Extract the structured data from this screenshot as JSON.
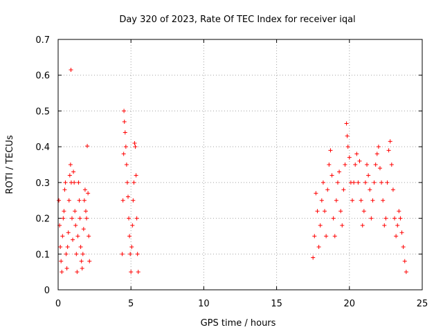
{
  "chart_data": {
    "type": "scatter",
    "title": "Day 320 of 2023, Rate Of TEC Index for receiver iqal",
    "xlabel": "GPS time / hours",
    "ylabel": "ROTI / TECUs",
    "xlim": [
      0,
      25
    ],
    "ylim": [
      0,
      0.7
    ],
    "xticks": [
      "0",
      "5",
      "10",
      "15",
      "20",
      "25"
    ],
    "yticks": [
      "0",
      "0.1",
      "0.2",
      "0.3",
      "0.4",
      "0.5",
      "0.6",
      "0.7"
    ],
    "grid": true,
    "marker": "+",
    "color": "#ff0000",
    "series": [
      {
        "points": [
          [
            0.05,
            0.25
          ],
          [
            0.1,
            0.18
          ],
          [
            0.15,
            0.12
          ],
          [
            0.2,
            0.08
          ],
          [
            0.25,
            0.05
          ],
          [
            0.3,
            0.15
          ],
          [
            0.35,
            0.2
          ],
          [
            0.4,
            0.22
          ],
          [
            0.45,
            0.28
          ],
          [
            0.5,
            0.3
          ],
          [
            0.55,
            0.1
          ],
          [
            0.6,
            0.06
          ],
          [
            0.65,
            0.12
          ],
          [
            0.7,
            0.16
          ],
          [
            0.75,
            0.25
          ],
          [
            0.8,
            0.32
          ],
          [
            0.85,
            0.35
          ],
          [
            0.88,
            0.615
          ],
          [
            0.9,
            0.3
          ],
          [
            0.95,
            0.2
          ],
          [
            1.0,
            0.14
          ],
          [
            1.05,
            0.33
          ],
          [
            1.1,
            0.3
          ],
          [
            1.15,
            0.22
          ],
          [
            1.2,
            0.18
          ],
          [
            1.25,
            0.1
          ],
          [
            1.3,
            0.05
          ],
          [
            1.35,
            0.15
          ],
          [
            1.4,
            0.3
          ],
          [
            1.45,
            0.25
          ],
          [
            1.5,
            0.2
          ],
          [
            1.55,
            0.12
          ],
          [
            1.6,
            0.08
          ],
          [
            1.65,
            0.06
          ],
          [
            1.7,
            0.1
          ],
          [
            1.75,
            0.17
          ],
          [
            1.8,
            0.25
          ],
          [
            1.85,
            0.28
          ],
          [
            1.9,
            0.22
          ],
          [
            1.95,
            0.2
          ],
          [
            2.0,
            0.402
          ],
          [
            2.05,
            0.27
          ],
          [
            2.1,
            0.15
          ],
          [
            2.15,
            0.08
          ],
          [
            4.4,
            0.1
          ],
          [
            4.45,
            0.25
          ],
          [
            4.5,
            0.38
          ],
          [
            4.52,
            0.5
          ],
          [
            4.55,
            0.47
          ],
          [
            4.6,
            0.44
          ],
          [
            4.65,
            0.4
          ],
          [
            4.7,
            0.35
          ],
          [
            4.75,
            0.3
          ],
          [
            4.8,
            0.26
          ],
          [
            4.85,
            0.2
          ],
          [
            4.9,
            0.15
          ],
          [
            4.95,
            0.1
          ],
          [
            5.0,
            0.05
          ],
          [
            5.05,
            0.12
          ],
          [
            5.1,
            0.18
          ],
          [
            5.15,
            0.25
          ],
          [
            5.2,
            0.3
          ],
          [
            5.25,
            0.41
          ],
          [
            5.3,
            0.4
          ],
          [
            5.35,
            0.32
          ],
          [
            5.4,
            0.2
          ],
          [
            5.45,
            0.1
          ],
          [
            5.5,
            0.05
          ],
          [
            17.5,
            0.09
          ],
          [
            17.6,
            0.15
          ],
          [
            17.7,
            0.27
          ],
          [
            17.8,
            0.22
          ],
          [
            17.9,
            0.12
          ],
          [
            18.0,
            0.18
          ],
          [
            18.1,
            0.25
          ],
          [
            18.2,
            0.3
          ],
          [
            18.3,
            0.22
          ],
          [
            18.4,
            0.15
          ],
          [
            18.5,
            0.28
          ],
          [
            18.6,
            0.35
          ],
          [
            18.7,
            0.39
          ],
          [
            18.8,
            0.32
          ],
          [
            18.9,
            0.2
          ],
          [
            19.0,
            0.15
          ],
          [
            19.1,
            0.25
          ],
          [
            19.2,
            0.3
          ],
          [
            19.3,
            0.33
          ],
          [
            19.4,
            0.22
          ],
          [
            19.5,
            0.18
          ],
          [
            19.6,
            0.28
          ],
          [
            19.7,
            0.35
          ],
          [
            19.8,
            0.465
          ],
          [
            19.85,
            0.43
          ],
          [
            19.9,
            0.4
          ],
          [
            20.0,
            0.37
          ],
          [
            20.1,
            0.3
          ],
          [
            20.2,
            0.25
          ],
          [
            20.3,
            0.3
          ],
          [
            20.4,
            0.35
          ],
          [
            20.5,
            0.38
          ],
          [
            20.6,
            0.3
          ],
          [
            20.7,
            0.36
          ],
          [
            20.8,
            0.25
          ],
          [
            20.9,
            0.18
          ],
          [
            21.0,
            0.22
          ],
          [
            21.1,
            0.3
          ],
          [
            21.2,
            0.35
          ],
          [
            21.3,
            0.32
          ],
          [
            21.4,
            0.28
          ],
          [
            21.5,
            0.2
          ],
          [
            21.6,
            0.25
          ],
          [
            21.7,
            0.3
          ],
          [
            21.8,
            0.35
          ],
          [
            21.9,
            0.38
          ],
          [
            22.0,
            0.4
          ],
          [
            22.1,
            0.34
          ],
          [
            22.2,
            0.3
          ],
          [
            22.3,
            0.25
          ],
          [
            22.4,
            0.18
          ],
          [
            22.5,
            0.2
          ],
          [
            22.6,
            0.3
          ],
          [
            22.7,
            0.39
          ],
          [
            22.8,
            0.415
          ],
          [
            22.9,
            0.35
          ],
          [
            23.0,
            0.28
          ],
          [
            23.1,
            0.2
          ],
          [
            23.2,
            0.15
          ],
          [
            23.3,
            0.18
          ],
          [
            23.4,
            0.22
          ],
          [
            23.5,
            0.2
          ],
          [
            23.6,
            0.16
          ],
          [
            23.7,
            0.12
          ],
          [
            23.8,
            0.08
          ],
          [
            23.9,
            0.05
          ]
        ]
      }
    ]
  }
}
